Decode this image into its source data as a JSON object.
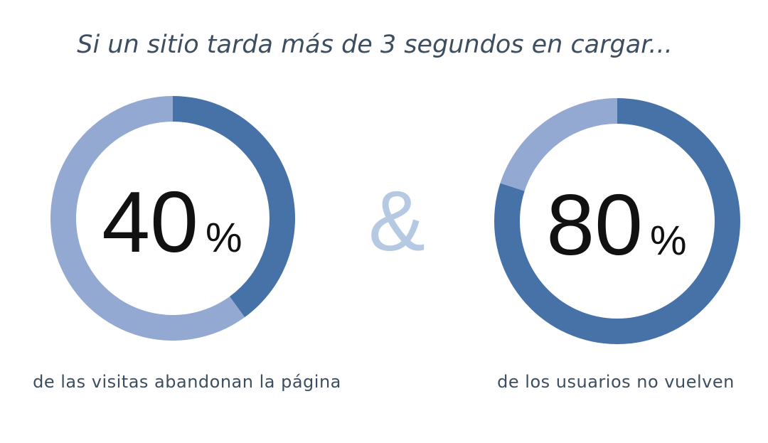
{
  "title": "Si un sitio tarda más de 3 segundos en cargar...",
  "connector": "&",
  "chart_data": [
    {
      "type": "donut",
      "values": [
        40,
        60
      ],
      "colors": [
        "#4672a8",
        "#93a9d1"
      ],
      "unit": "%",
      "caption": "de las visitas abandonan la página"
    },
    {
      "type": "donut",
      "values": [
        80,
        20
      ],
      "colors": [
        "#4672a8",
        "#93a9d1"
      ],
      "unit": "%",
      "caption": "de los usuarios no vuelven"
    }
  ]
}
